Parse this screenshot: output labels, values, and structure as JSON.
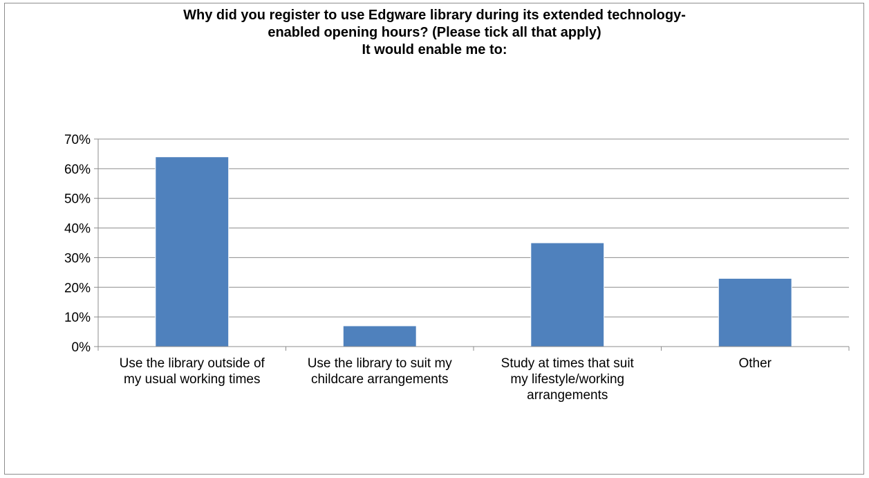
{
  "chart_data": {
    "type": "bar",
    "title_lines": [
      "Why did you register to use Edgware library during its extended technology-",
      "enabled opening hours? (Please tick all that apply)",
      "It would enable me to:"
    ],
    "categories": [
      [
        "Use the library outside of",
        "my usual working times"
      ],
      [
        "Use the library to suit my",
        "childcare arrangements"
      ],
      [
        "Study at times that suit",
        "my lifestyle/working",
        "arrangements"
      ],
      [
        "Other"
      ]
    ],
    "values": [
      64,
      7,
      35,
      23
    ],
    "yticks": [
      "0%",
      "10%",
      "20%",
      "30%",
      "40%",
      "50%",
      "60%",
      "70%"
    ],
    "ylim": [
      0,
      70
    ],
    "bar_color": "#4f81bd",
    "grid": true,
    "legend": "none"
  }
}
